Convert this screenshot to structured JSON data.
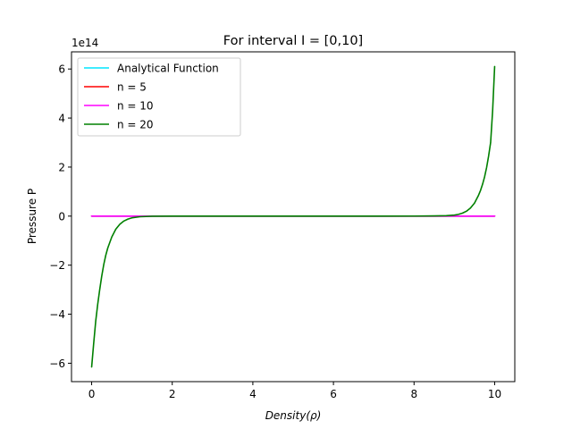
{
  "chart_data": {
    "type": "line",
    "title": "For interval I = [0,10]",
    "xlabel_main": "Density",
    "xlabel_rho": "ρ",
    "ylabel": "Pressure P",
    "y_offset_label": "1e14",
    "xlim": [
      -0.5,
      10.5
    ],
    "ylim": [
      -6.75,
      6.7
    ],
    "x_ticks": [
      0,
      2,
      4,
      6,
      8,
      10
    ],
    "x_tick_labels": [
      "0",
      "2",
      "4",
      "6",
      "8",
      "10"
    ],
    "y_ticks": [
      -6,
      -4,
      -2,
      0,
      2,
      4,
      6
    ],
    "y_tick_labels": [
      "−6",
      "−4",
      "−2",
      "0",
      "2",
      "4",
      "6"
    ],
    "grid": false,
    "legend_position": "upper-left",
    "series": [
      {
        "name": "Analytical Function",
        "color": "#00e5ff",
        "x": [
          0,
          2,
          4,
          6,
          8,
          10
        ],
        "y": [
          0,
          0,
          0,
          0,
          0,
          0
        ]
      },
      {
        "name": "n = 5",
        "color": "#ff0000",
        "x": [
          0,
          2,
          4,
          6,
          8,
          10
        ],
        "y": [
          0,
          0,
          0,
          0,
          0,
          0
        ]
      },
      {
        "name": "n = 10",
        "color": "#ff00ff",
        "x": [
          0,
          2,
          4,
          6,
          8,
          10
        ],
        "y": [
          0,
          0,
          0,
          0,
          0,
          0
        ]
      },
      {
        "name": "n = 20",
        "color": "#008000",
        "x": [
          0,
          0.05,
          0.1,
          0.15,
          0.2,
          0.25,
          0.3,
          0.35,
          0.4,
          0.5,
          0.6,
          0.7,
          0.8,
          0.9,
          1.0,
          1.2,
          1.5,
          2.0,
          3.0,
          5.0,
          7.0,
          8.0,
          8.5,
          8.8,
          9.0,
          9.1,
          9.2,
          9.3,
          9.4,
          9.5,
          9.6,
          9.65,
          9.7,
          9.75,
          9.8,
          9.85,
          9.9,
          9.95,
          10.0
        ],
        "y": [
          -6.15,
          -5.2,
          -4.3,
          -3.6,
          -3.0,
          -2.45,
          -1.98,
          -1.6,
          -1.3,
          -0.85,
          -0.53,
          -0.33,
          -0.2,
          -0.12,
          -0.07,
          -0.025,
          -0.006,
          0,
          0,
          0,
          0,
          0.002,
          0.008,
          0.02,
          0.04,
          0.07,
          0.12,
          0.2,
          0.33,
          0.53,
          0.85,
          1.05,
          1.3,
          1.6,
          1.98,
          2.45,
          3.0,
          4.3,
          6.1
        ]
      }
    ]
  }
}
